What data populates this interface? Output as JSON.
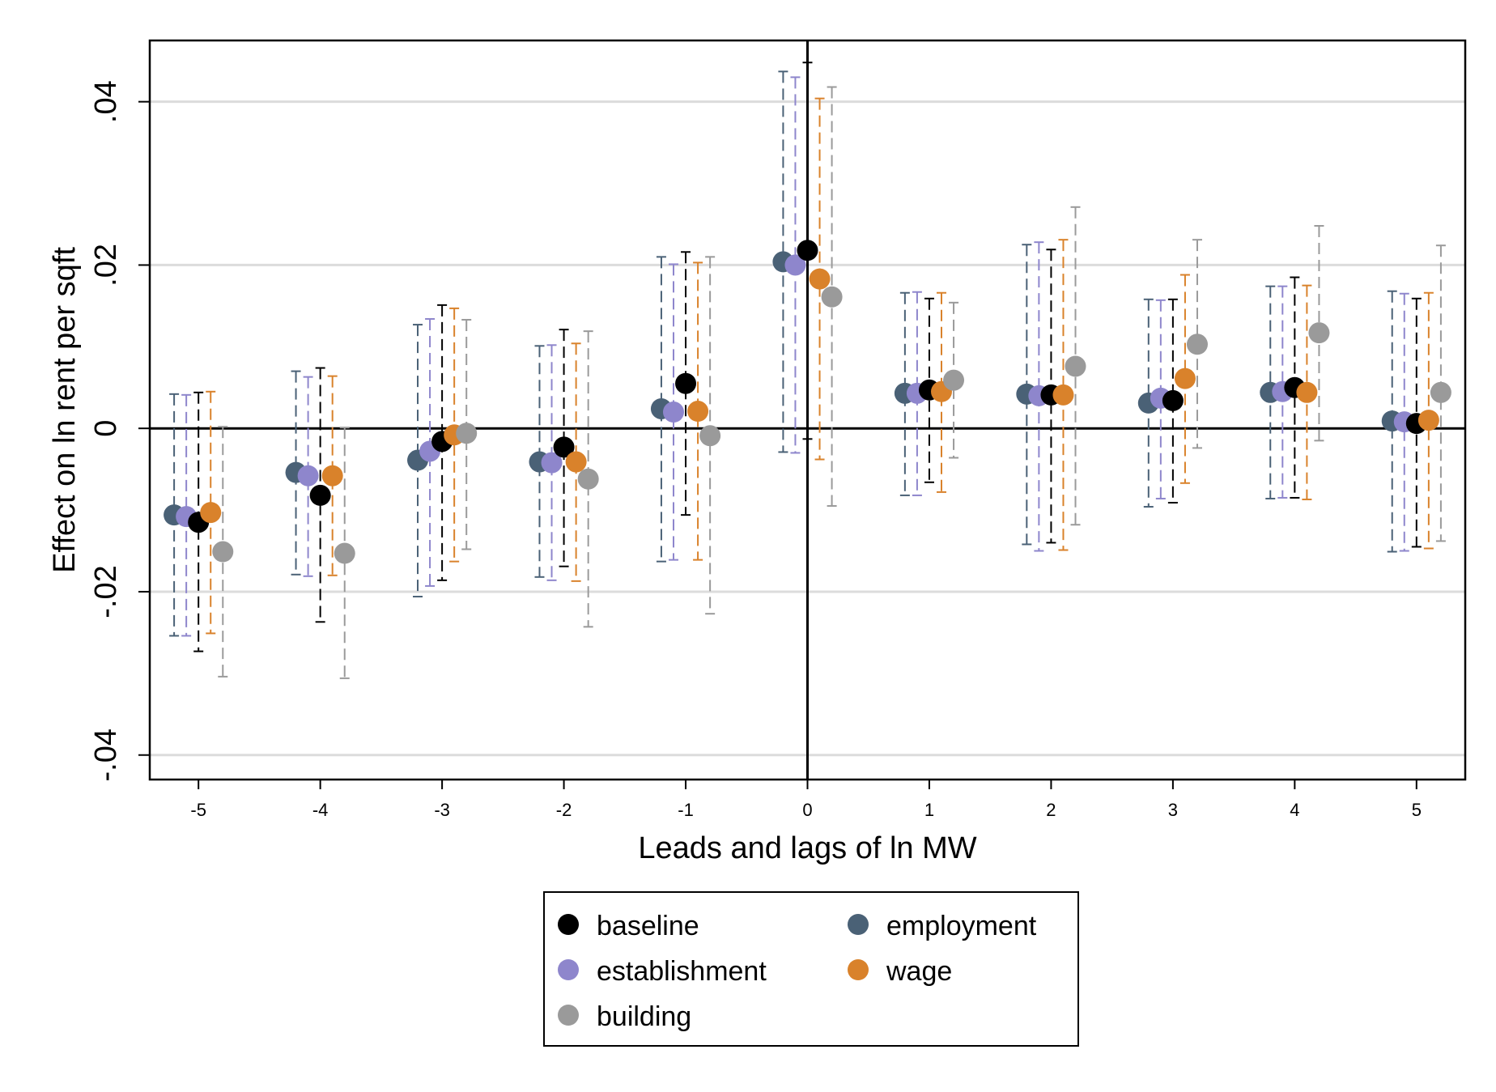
{
  "chart_data": {
    "type": "scatter",
    "xlabel": "Leads and lags of ln MW",
    "ylabel": "Effect on ln rent per sqft",
    "x_ticks": [
      -5,
      -4,
      -3,
      -2,
      -1,
      0,
      1,
      2,
      3,
      4,
      5
    ],
    "x_tick_labels": [
      "-5",
      "-4",
      "-3",
      "-2",
      "-1",
      "0",
      "1",
      "2",
      "3",
      "4",
      "5"
    ],
    "y_ticks": [
      -0.04,
      -0.02,
      0,
      0.02,
      0.04
    ],
    "y_tick_labels": [
      "-.04",
      "-.02",
      "0",
      ".02",
      ".04"
    ],
    "xlim": [
      -5.4,
      5.4
    ],
    "ylim": [
      -0.043,
      0.0475
    ],
    "grid": "horizontal",
    "legend_position": "bottom",
    "series": [
      {
        "name": "employment",
        "color": "#4a6176",
        "x": [
          -5,
          -4,
          -3,
          -2,
          -1,
          0,
          1,
          2,
          3,
          4,
          5
        ],
        "offset": -0.2,
        "y": [
          -0.0106,
          -0.0054,
          -0.0039,
          -0.0041,
          0.0024,
          0.0204,
          0.0043,
          0.0042,
          0.0031,
          0.0044,
          0.0009
        ],
        "ci_low": [
          -0.0254,
          -0.0179,
          -0.0206,
          -0.0182,
          -0.0163,
          -0.0029,
          -0.0082,
          -0.0142,
          -0.0096,
          -0.0086,
          -0.0151
        ],
        "ci_high": [
          0.0042,
          0.007,
          0.0127,
          0.0101,
          0.021,
          0.0437,
          0.0166,
          0.0225,
          0.0158,
          0.0174,
          0.0168
        ]
      },
      {
        "name": "establishment",
        "color": "#8e86cc",
        "x": [
          -5,
          -4,
          -3,
          -2,
          -1,
          0,
          1,
          2,
          3,
          4,
          5
        ],
        "offset": -0.1,
        "y": [
          -0.0108,
          -0.0058,
          -0.0028,
          -0.0042,
          0.002,
          0.02,
          0.0043,
          0.004,
          0.0037,
          0.0045,
          0.0008
        ],
        "ci_low": [
          -0.0254,
          -0.0181,
          -0.0193,
          -0.0186,
          -0.0161,
          -0.003,
          -0.0082,
          -0.015,
          -0.0086,
          -0.0085,
          -0.015
        ],
        "ci_high": [
          0.0041,
          0.0063,
          0.0134,
          0.0102,
          0.0201,
          0.043,
          0.0167,
          0.0228,
          0.0157,
          0.0174,
          0.0165
        ]
      },
      {
        "name": "baseline",
        "color": "#000000",
        "x": [
          -5,
          -4,
          -3,
          -2,
          -1,
          0,
          1,
          2,
          3,
          4,
          5
        ],
        "offset": 0,
        "y": [
          -0.0115,
          -0.0082,
          -0.0016,
          -0.0023,
          0.0055,
          0.0218,
          0.0047,
          0.0041,
          0.0034,
          0.005,
          0.0006
        ],
        "ci_low": [
          -0.0273,
          -0.0237,
          -0.0186,
          -0.0169,
          -0.0106,
          -0.0013,
          -0.0066,
          -0.014,
          -0.0091,
          -0.0085,
          -0.0145
        ],
        "ci_high": [
          0.0044,
          0.0074,
          0.0151,
          0.0121,
          0.0216,
          0.0448,
          0.0159,
          0.0219,
          0.0158,
          0.0185,
          0.0159
        ]
      },
      {
        "name": "wage",
        "color": "#d9822b",
        "x": [
          -5,
          -4,
          -3,
          -2,
          -1,
          0,
          1,
          2,
          3,
          4,
          5
        ],
        "offset": 0.1,
        "y": [
          -0.0103,
          -0.0058,
          -0.0008,
          -0.0041,
          0.0021,
          0.0183,
          0.0045,
          0.0041,
          0.0061,
          0.0044,
          0.001
        ],
        "ci_low": [
          -0.0251,
          -0.018,
          -0.0163,
          -0.0187,
          -0.0161,
          -0.0038,
          -0.0078,
          -0.0149,
          -0.0067,
          -0.0087,
          -0.0147
        ],
        "ci_high": [
          0.0045,
          0.0064,
          0.0147,
          0.0104,
          0.0203,
          0.0404,
          0.0166,
          0.0231,
          0.0188,
          0.0175,
          0.0166
        ]
      },
      {
        "name": "building",
        "color": "#9a9a9a",
        "x": [
          -5,
          -4,
          -3,
          -2,
          -1,
          0,
          1,
          2,
          3,
          4,
          5
        ],
        "offset": 0.2,
        "y": [
          -0.0151,
          -0.0153,
          -0.0006,
          -0.0062,
          -0.0009,
          0.0161,
          0.0059,
          0.0076,
          0.0103,
          0.0117,
          0.0044
        ],
        "ci_low": [
          -0.0304,
          -0.0306,
          -0.0148,
          -0.0243,
          -0.0227,
          -0.0095,
          -0.0036,
          -0.0118,
          -0.0024,
          -0.0015,
          -0.0138
        ],
        "ci_high": [
          0.0002,
          0.0001,
          0.0133,
          0.0119,
          0.021,
          0.0418,
          0.0154,
          0.0271,
          0.0231,
          0.0248,
          0.0224
        ]
      }
    ],
    "legend": [
      {
        "name": "baseline",
        "color": "#000000"
      },
      {
        "name": "employment",
        "color": "#4a6176"
      },
      {
        "name": "establishment",
        "color": "#8e86cc"
      },
      {
        "name": "wage",
        "color": "#d9822b"
      },
      {
        "name": "building",
        "color": "#9a9a9a"
      }
    ]
  }
}
